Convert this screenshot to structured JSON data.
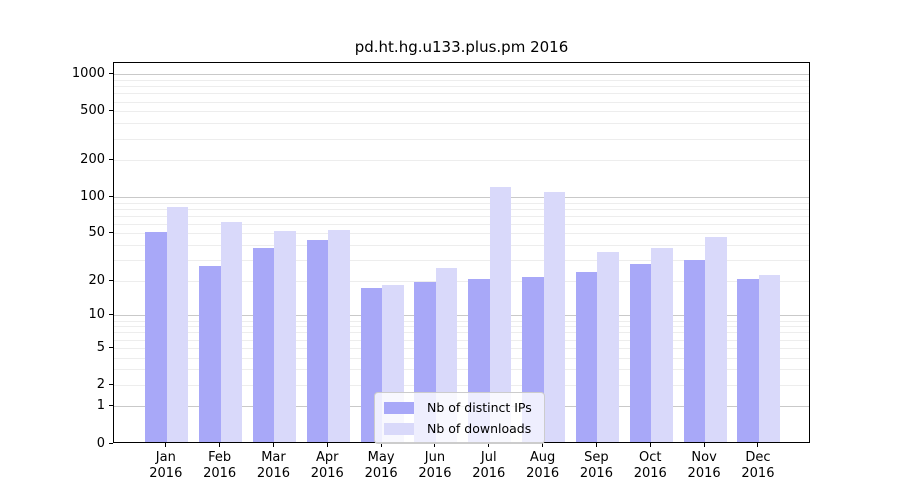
{
  "title": "pd.ht.hg.u133.plus.pm 2016",
  "chart_data": {
    "type": "bar",
    "title": "pd.ht.hg.u133.plus.pm 2016",
    "categories": [
      "Jan 2016",
      "Feb 2016",
      "Mar 2016",
      "Apr 2016",
      "May 2016",
      "Jun 2016",
      "Jul 2016",
      "Aug 2016",
      "Sep 2016",
      "Oct 2016",
      "Nov 2016",
      "Dec 2016"
    ],
    "series": [
      {
        "name": "Nb of distinct IPs",
        "color": "#a8a8f8",
        "values": [
          50,
          26,
          37,
          43,
          17,
          19,
          20,
          21,
          23,
          27,
          29,
          20
        ]
      },
      {
        "name": "Nb of downloads",
        "color": "#d9d9fa",
        "values": [
          80,
          60,
          51,
          52,
          18,
          25,
          117,
          106,
          34,
          37,
          45,
          22
        ]
      }
    ],
    "yscale": "log1p",
    "yticks": [
      0,
      1,
      2,
      5,
      10,
      20,
      50,
      100,
      200,
      500,
      1000
    ],
    "ylim": [
      0,
      1250
    ],
    "grid": "both",
    "legend_position": "lower center",
    "colors": {
      "major_grid": "#c9c9c9",
      "minor_grid": "#ededed",
      "axis": "#000000"
    }
  }
}
